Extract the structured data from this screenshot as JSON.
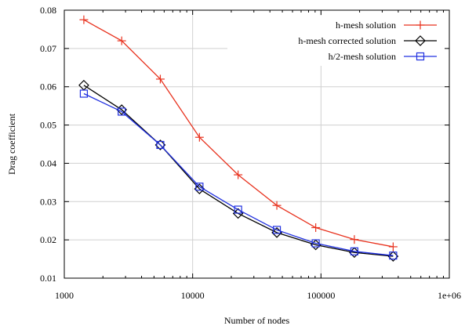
{
  "chart_data": {
    "type": "line",
    "xlabel": "Number of nodes",
    "ylabel": "Drag coefficient",
    "x_scale": "log",
    "xlim": [
      1000,
      1000000
    ],
    "ylim": [
      0.01,
      0.08
    ],
    "x_ticks": [
      1000,
      10000,
      100000,
      1000000
    ],
    "x_tick_labels": [
      "1000",
      "10000",
      "100000",
      "1e+06"
    ],
    "y_ticks": [
      0.01,
      0.02,
      0.03,
      0.04,
      0.05,
      0.06,
      0.07,
      0.08
    ],
    "y_tick_labels": [
      "0.01",
      "0.02",
      "0.03",
      "0.04",
      "0.05",
      "0.06",
      "0.07",
      "0.08"
    ],
    "grid": true,
    "legend_position": "top-right",
    "series": [
      {
        "name": "h-mesh solution",
        "color": "#e8321e",
        "marker": "plus",
        "x": [
          1420,
          2800,
          5600,
          11300,
          22600,
          45300,
          91000,
          182000,
          365000
        ],
        "y": [
          0.0775,
          0.072,
          0.062,
          0.0468,
          0.037,
          0.029,
          0.0232,
          0.0201,
          0.0182
        ]
      },
      {
        "name": "h-mesh corrected solution",
        "color": "#000000",
        "marker": "diamond",
        "x": [
          1420,
          2800,
          5600,
          11300,
          22600,
          45300,
          91000,
          182000,
          365000
        ],
        "y": [
          0.0604,
          0.054,
          0.0448,
          0.0333,
          0.0269,
          0.0219,
          0.0187,
          0.0167,
          0.0157
        ]
      },
      {
        "name": "h/2-mesh solution",
        "color": "#2030e0",
        "marker": "square",
        "x": [
          1420,
          2800,
          5600,
          11300,
          22600,
          45300,
          91000,
          182000,
          365000
        ],
        "y": [
          0.0582,
          0.0535,
          0.0448,
          0.0339,
          0.0279,
          0.0226,
          0.0191,
          0.017,
          0.0159
        ]
      }
    ]
  }
}
